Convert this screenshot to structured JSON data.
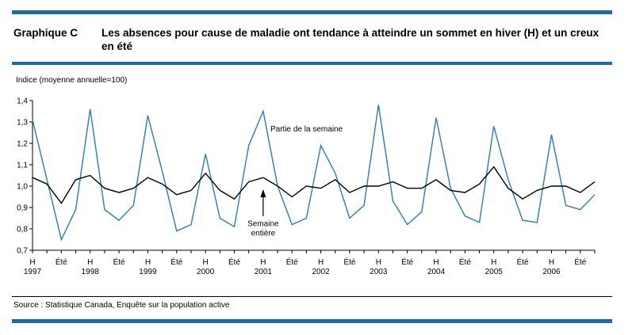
{
  "header": {
    "label": "Graphique C",
    "title": "Les absences pour cause de maladie ont tendance à atteindre un sommet en hiver (H) et un creux en été"
  },
  "source": "Source :  Statistique Canada,  Enquête sur la population active",
  "colors": {
    "rule": "#1f6b9e",
    "part_week": "#2c7bb0",
    "whole_week": "#000000"
  },
  "chart_data": {
    "type": "line",
    "ylabel": "Indice (moyenne annuelle=100)",
    "ylim": [
      0.7,
      1.4
    ],
    "yticks": [
      "0,7",
      "0,8",
      "0,9",
      "1,0",
      "1,1",
      "1,2",
      "1,3",
      "1,4"
    ],
    "grid": false,
    "season_labels": [
      "H",
      "Été",
      "H",
      "Été",
      "H",
      "Été",
      "H",
      "Été",
      "H",
      "Été",
      "H",
      "Été",
      "H",
      "Été",
      "H",
      "Été",
      "H",
      "Été",
      "H",
      "Été"
    ],
    "year_labels": [
      "1997",
      "1998",
      "1999",
      "2000",
      "2001",
      "2002",
      "2003",
      "2004",
      "2005",
      "2006"
    ],
    "x": [
      "1997 H",
      "",
      "1997 Été",
      "",
      "1998 H",
      "",
      "1998 Été",
      "",
      "1999 H",
      "",
      "1999 Été",
      "",
      "2000 H",
      "",
      "2000 Été",
      "",
      "2001 H",
      "",
      "2001 Été",
      "",
      "2002 H",
      "",
      "2002 Été",
      "",
      "2003 H",
      "",
      "2003 Été",
      "",
      "2004 H",
      "",
      "2004 Été",
      "",
      "2005 H",
      "",
      "2005 Été",
      "",
      "2006 H",
      "",
      "2006 Été",
      ""
    ],
    "series": [
      {
        "name": "Partie de la semaine",
        "values": [
          1.31,
          1.03,
          0.75,
          0.89,
          1.36,
          0.89,
          0.84,
          0.91,
          1.33,
          1.07,
          0.79,
          0.82,
          1.15,
          0.85,
          0.81,
          1.19,
          1.35,
          1.0,
          0.82,
          0.85,
          1.19,
          1.06,
          0.85,
          0.91,
          1.38,
          0.93,
          0.82,
          0.88,
          1.32,
          0.99,
          0.86,
          0.83,
          1.28,
          1.03,
          0.84,
          0.83,
          1.24,
          0.91,
          0.89,
          0.96
        ]
      },
      {
        "name": "Semaine entière",
        "values": [
          1.04,
          1.01,
          0.92,
          1.03,
          1.05,
          0.99,
          0.97,
          0.99,
          1.04,
          1.01,
          0.96,
          0.98,
          1.06,
          0.98,
          0.94,
          1.02,
          1.04,
          1.0,
          0.95,
          1.0,
          0.99,
          1.03,
          0.97,
          1.0,
          1.0,
          1.02,
          0.99,
          0.99,
          1.03,
          0.98,
          0.97,
          1.01,
          1.09,
          0.99,
          0.94,
          0.98,
          1.0,
          1.0,
          0.97,
          1.02
        ]
      }
    ],
    "annotations": [
      {
        "text": "Partie de la semaine",
        "series": 0
      },
      {
        "text": "Semaine",
        "series": 1
      },
      {
        "text": "entière",
        "series": 1
      }
    ]
  }
}
